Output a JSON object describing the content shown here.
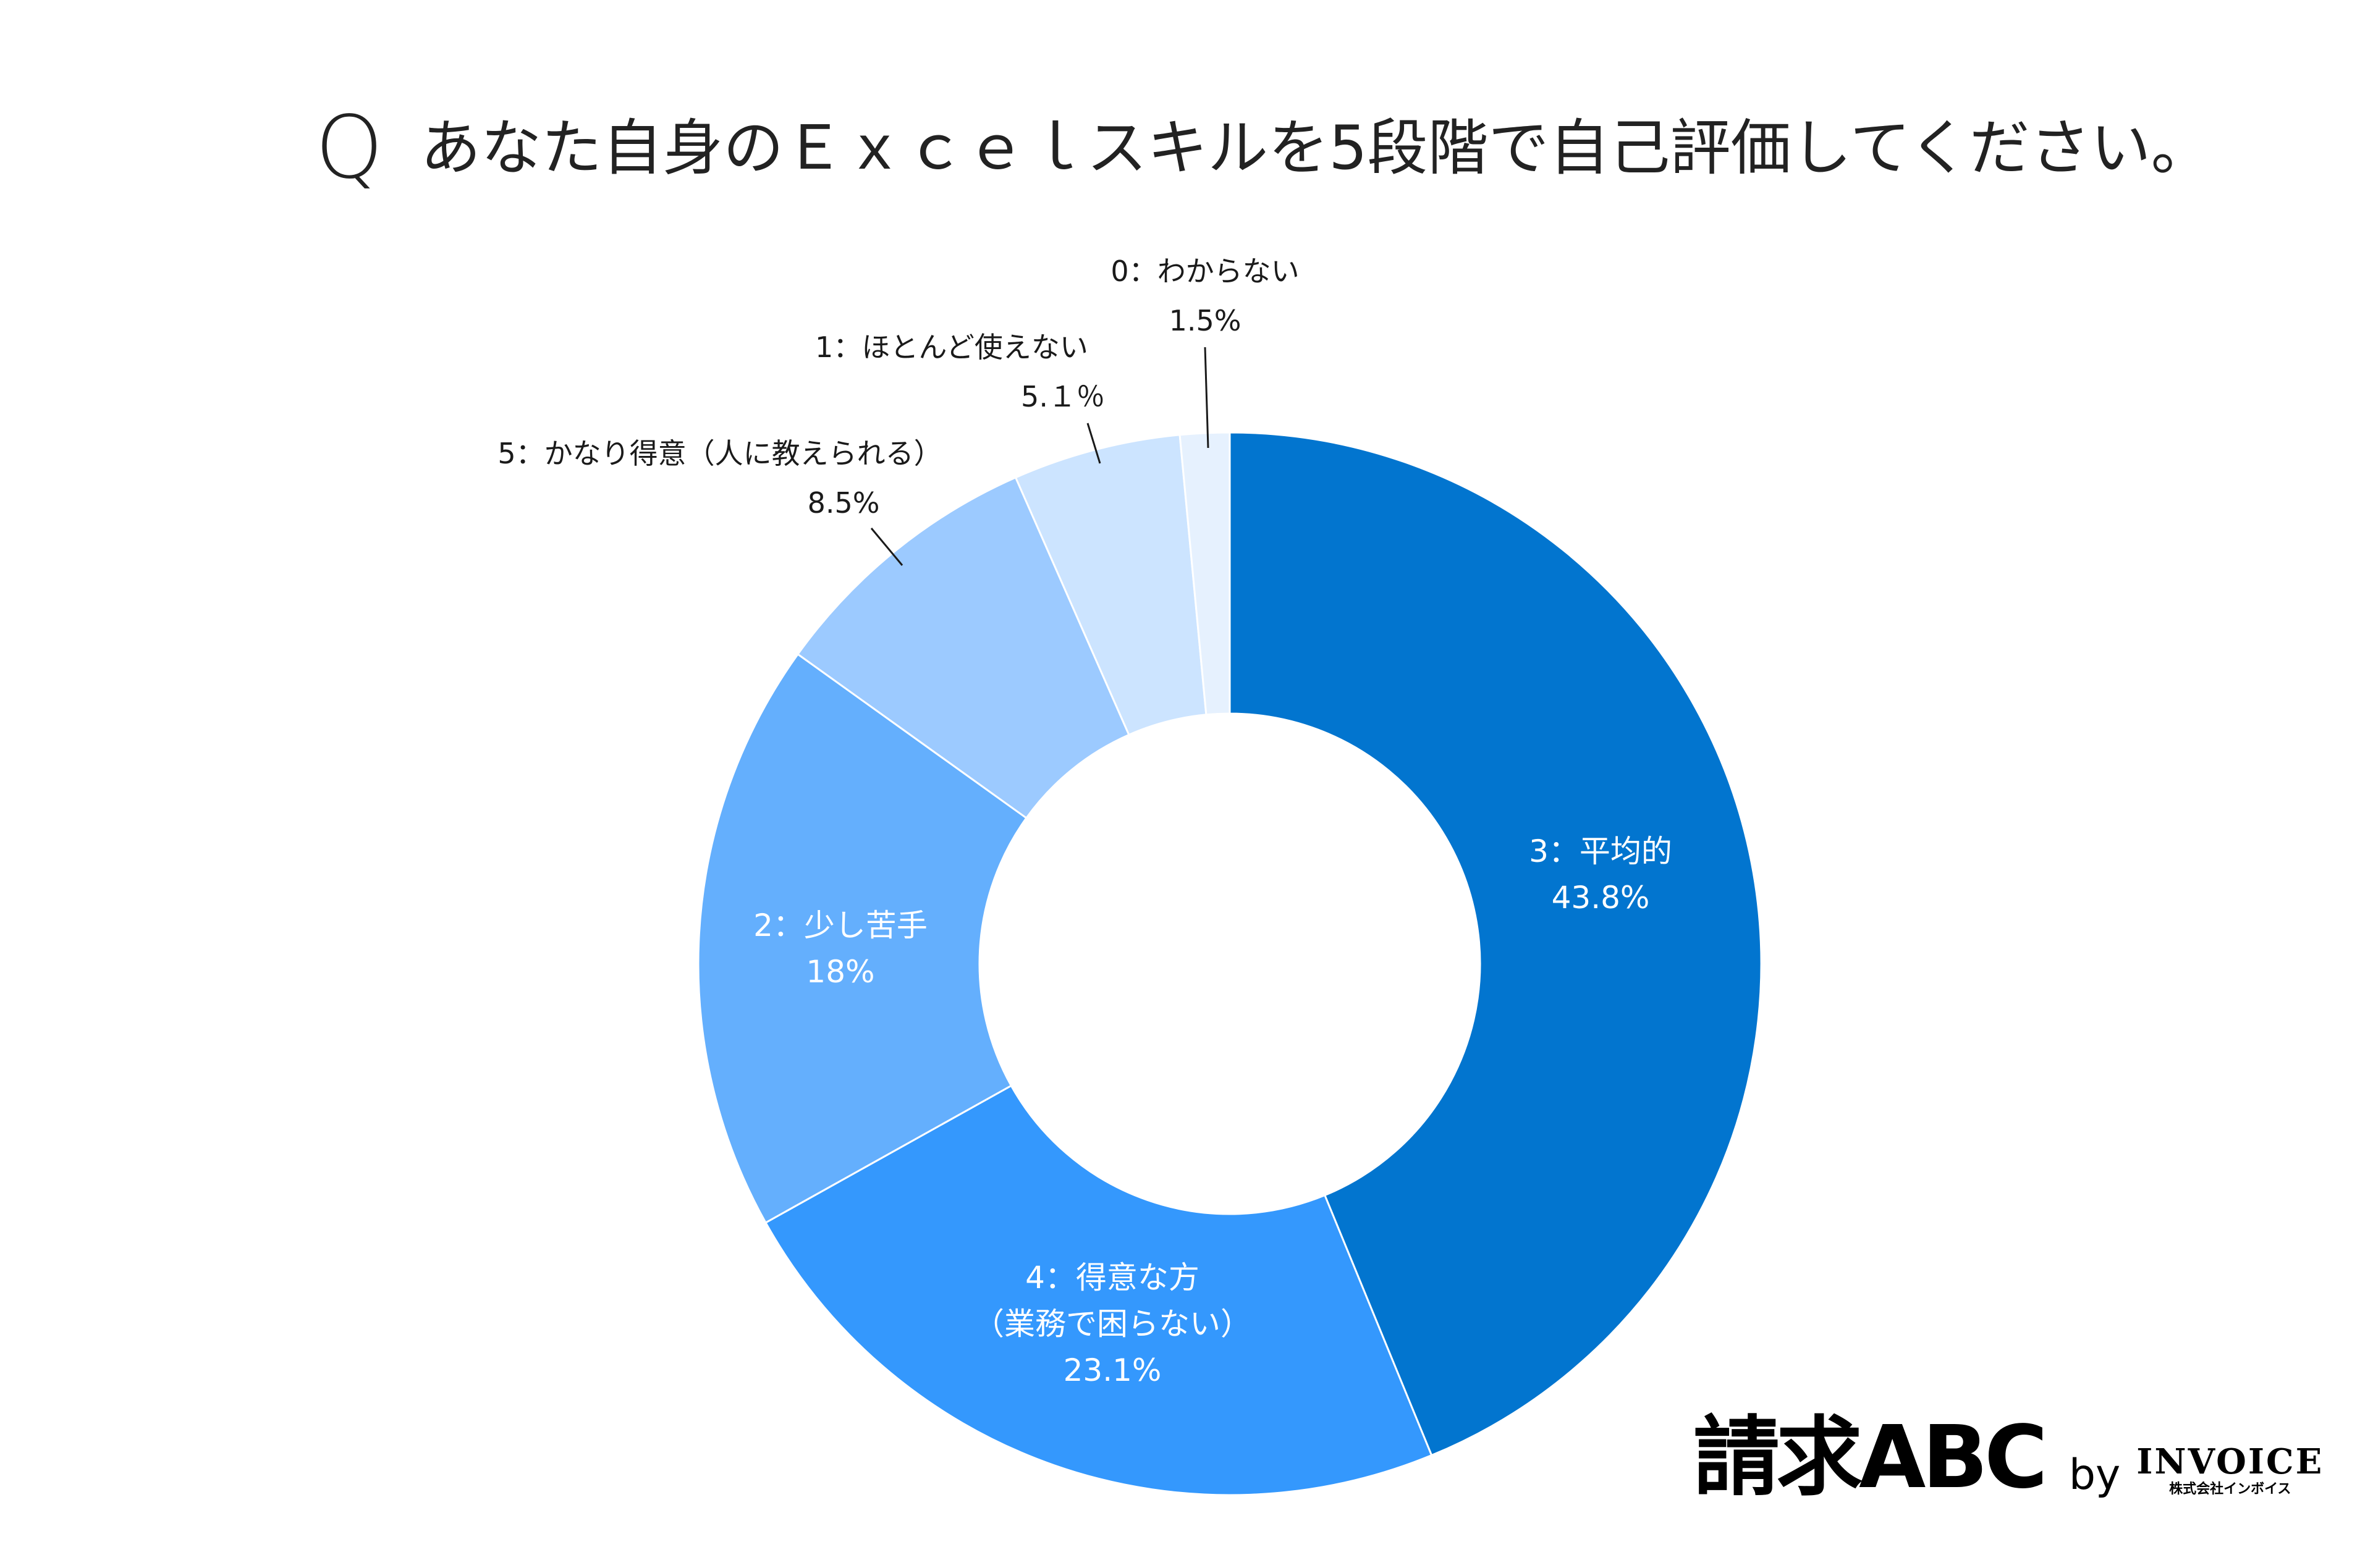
{
  "title": {
    "q": "Q",
    "text": "あなた自身のＥｘｃｅｌスキルを5段階で自己評価してください。"
  },
  "chart_data": {
    "type": "pie",
    "title": "あなた自身のＥｘｃｅｌスキルを5段階で自己評価してください。",
    "slices": [
      {
        "label": "3：平均的",
        "value": 43.8,
        "value_label": "43.8%",
        "color": "#0275cf"
      },
      {
        "label": "4：得意な方（業務で困らない）",
        "label_lines": [
          "4：得意な方",
          "（業務で困らない）"
        ],
        "value": 23.1,
        "value_label": "23.1%",
        "color": "#3498fd"
      },
      {
        "label": "2：少し苦手",
        "value": 18,
        "value_label": "18%",
        "color": "#64affd"
      },
      {
        "label": "5：かなり得意（人に教えられる）",
        "value": 8.5,
        "value_label": "8.5%",
        "color": "#9ccaff"
      },
      {
        "label": "1：ほとんど使えない",
        "value": 5.1,
        "value_label": "5.１％",
        "color": "#cce4ff"
      },
      {
        "label": "0：わからない",
        "value": 1.5,
        "value_label": "1.5%",
        "color": "#e6f1fe"
      }
    ],
    "legend": "none"
  },
  "brand": {
    "main": "請求ABC",
    "by": "by",
    "company": "INVOICE",
    "company_sub": "株式会社インボイス"
  }
}
